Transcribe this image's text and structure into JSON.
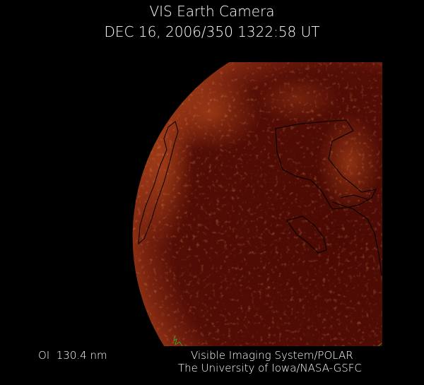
{
  "header": {
    "title": "VIS Earth Camera",
    "timestamp": "DEC 16, 2006/350 1322:58 UT"
  },
  "footer": {
    "band": "OI  130.4 nm",
    "credit_line1": "Visible Imaging System/POLAR",
    "credit_line2": "The University of Iowa/NASA-GSFC"
  },
  "colors": {
    "background": "#000000",
    "disk_base": "#4a0a04",
    "aurora_glow": "#c0501e",
    "coastline": "#000000",
    "grid_marks": "#3c9a2a"
  }
}
